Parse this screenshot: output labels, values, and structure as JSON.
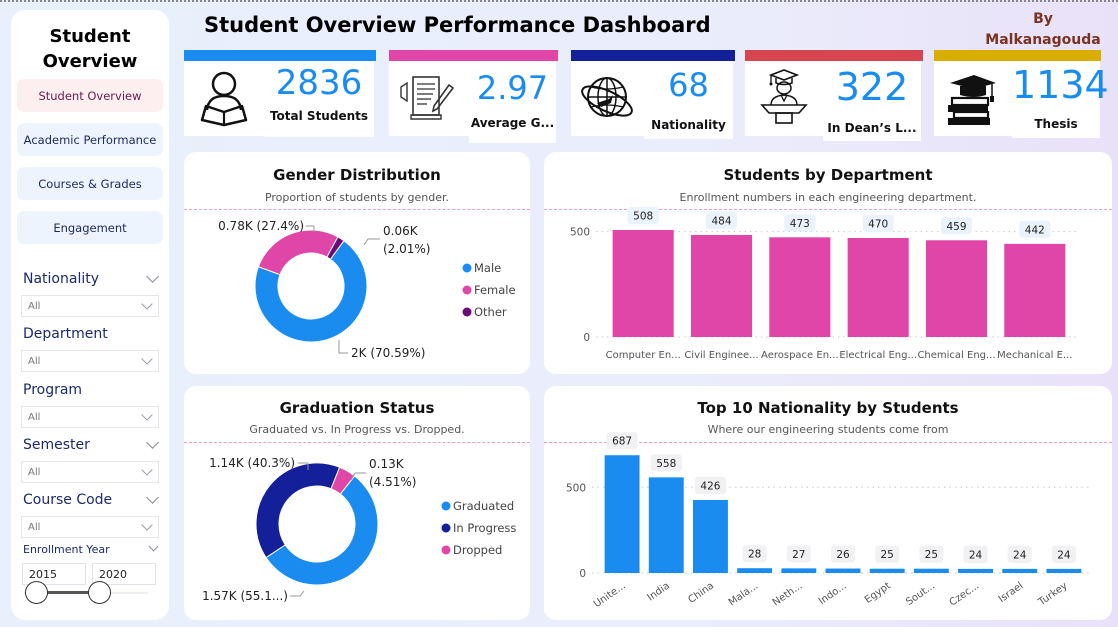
{
  "sidebar": {
    "title_line1": "Student",
    "title_line2": "Overview",
    "nav": [
      {
        "label": "Student Overview",
        "active": true
      },
      {
        "label": "Academic Performance",
        "active": false
      },
      {
        "label": "Courses & Grades",
        "active": false
      },
      {
        "label": "Engagement",
        "active": false
      }
    ],
    "filters": [
      {
        "label": "Nationality",
        "value": "All"
      },
      {
        "label": "Department",
        "value": "All"
      },
      {
        "label": "Program",
        "value": "All"
      },
      {
        "label": "Semester",
        "value": "All"
      },
      {
        "label": "Course Code",
        "value": "All"
      }
    ],
    "enrollment_year": {
      "label": "Enrollment Year",
      "from": "2015",
      "to": "2020"
    }
  },
  "header": {
    "title": "Student Overview Performance Dashboard",
    "author_line1": "By",
    "author_line2": "Malkanagouda"
  },
  "kpis": [
    {
      "value": "2836",
      "label": "Total Students",
      "icon": "student-reading-icon",
      "color": "#1a8cf0"
    },
    {
      "value": "2.97",
      "label": "Average G...",
      "icon": "document-pen-icon",
      "color": "#e040a0"
    },
    {
      "value": "68",
      "label": "Nationality",
      "icon": "globe-plane-icon",
      "color": "#14209a"
    },
    {
      "value": "322",
      "label": "In Dean’s L...",
      "icon": "graduate-podium-icon",
      "color": "#d64550"
    },
    {
      "value": "1134",
      "label": "Thesis",
      "icon": "books-cap-icon",
      "color": "#d9ae00"
    }
  ],
  "panels": {
    "gender": {
      "title": "Gender Distribution",
      "subtitle": "Proportion of students by gender."
    },
    "department": {
      "title": "Students by Department",
      "subtitle": "Enrollment numbers in each engineering department."
    },
    "graduation": {
      "title": "Graduation Status",
      "subtitle": "Graduated vs. In Progress vs. Dropped."
    },
    "nationality": {
      "title": "Top 10 Nationality by Students",
      "subtitle": "Where our engineering students come from"
    }
  },
  "chart_data": [
    {
      "type": "pie",
      "donut": true,
      "title": "Gender Distribution",
      "categories": [
        "Male",
        "Female",
        "Other"
      ],
      "values": [
        2002,
        777,
        57
      ],
      "percent": [
        70.59,
        27.4,
        2.01
      ],
      "data_labels": [
        "2K (70.59%)",
        "0.78K (27.4%)",
        "0.06K (2.01%)"
      ],
      "colors": [
        "#1a8cf0",
        "#e046a8",
        "#6a0a78"
      ],
      "legend": "right"
    },
    {
      "type": "bar",
      "title": "Students by Department",
      "categories": [
        "Computer En...",
        "Civil Enginee...",
        "Aerospace En...",
        "Electrical Eng...",
        "Chemical Eng...",
        "Mechanical E..."
      ],
      "values": [
        508,
        484,
        473,
        470,
        459,
        442
      ],
      "yticks": [
        0,
        500
      ],
      "ylim": [
        0,
        560
      ],
      "color": "#e046a8",
      "grid": true
    },
    {
      "type": "pie",
      "donut": true,
      "title": "Graduation Status",
      "categories": [
        "Graduated",
        "In Progress",
        "Dropped"
      ],
      "values": [
        1565,
        1143,
        128
      ],
      "percent": [
        55.19,
        40.3,
        4.51
      ],
      "data_labels": [
        "1.57K (55.1...)",
        "1.14K (40.3%)",
        "0.13K (4.51%)"
      ],
      "colors": [
        "#1a8cf0",
        "#14209a",
        "#e046a8"
      ],
      "legend": "right"
    },
    {
      "type": "bar",
      "title": "Top 10 Nationality by Students",
      "categories": [
        "Unite...",
        "India",
        "China",
        "Mala...",
        "Neth...",
        "Indo...",
        "Egypt",
        "Sout...",
        "Czec...",
        "Israel",
        "Turkey"
      ],
      "values": [
        687,
        558,
        426,
        28,
        27,
        26,
        25,
        25,
        24,
        24,
        24
      ],
      "yticks": [
        0,
        500
      ],
      "ylim": [
        0,
        700
      ],
      "color": "#1a8cf0",
      "grid": true
    }
  ]
}
